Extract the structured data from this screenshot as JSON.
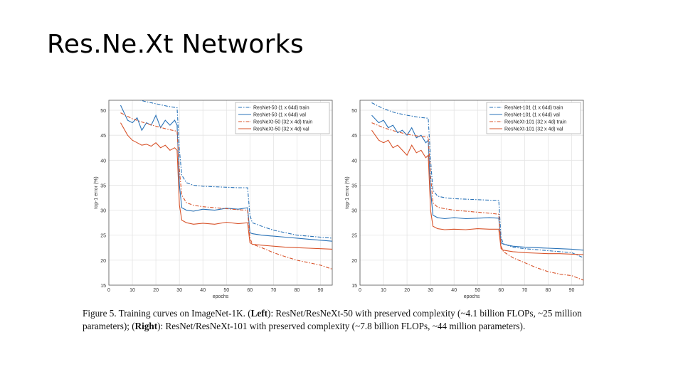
{
  "slide": {
    "title": "Res.Ne.Xt Networks"
  },
  "caption": {
    "lead": "Figure 5. Training curves on ImageNet-1K. (",
    "left_bold": "Left",
    "mid": "): ResNet/ResNeXt-50 with preserved complexity (~4.1 billion FLOPs, ~25 million parameters); (",
    "right_bold": "Right",
    "tail": "): ResNet/ResNeXt-101 with preserved complexity (~7.8 billion FLOPs, ~44 million parameters)."
  },
  "colors": {
    "blue": "#2a73b8",
    "orange": "#d8532a",
    "grid": "#e4e4e4",
    "axis": "#555555"
  },
  "chart_data": [
    {
      "type": "line",
      "xlabel": "epochs",
      "ylabel": "top-1 error (%)",
      "xlim": [
        0,
        95
      ],
      "ylim": [
        15,
        52
      ],
      "xticks": [
        0,
        10,
        20,
        30,
        40,
        50,
        60,
        70,
        80,
        90
      ],
      "yticks": [
        15,
        20,
        25,
        30,
        35,
        40,
        45,
        50
      ],
      "grid": true,
      "legend_position": "top-right",
      "series": [
        {
          "name": "ResNet-50 (1 x 64d) train",
          "style": "dashdot",
          "color": "blue",
          "x": [
            5,
            10,
            15,
            20,
            25,
            29,
            30,
            31,
            33,
            36,
            40,
            45,
            50,
            55,
            59,
            60,
            61,
            65,
            70,
            75,
            80,
            85,
            90,
            95
          ],
          "y": [
            53,
            52.5,
            51.8,
            51.3,
            50.8,
            50.5,
            42,
            37,
            35.5,
            35,
            34.8,
            34.7,
            34.6,
            34.5,
            34.5,
            29,
            27.5,
            26.8,
            26,
            25.5,
            25,
            24.8,
            24.6,
            24.4
          ]
        },
        {
          "name": "ResNet-50 (1 x 64d) val",
          "style": "solid",
          "color": "blue",
          "x": [
            5,
            8,
            10,
            12,
            14,
            16,
            18,
            20,
            22,
            24,
            26,
            28,
            29,
            30,
            31,
            33,
            36,
            40,
            45,
            50,
            55,
            59,
            60,
            61,
            65,
            70,
            75,
            80,
            85,
            90,
            95
          ],
          "y": [
            51,
            48,
            47.5,
            48.5,
            46,
            47.5,
            47,
            49,
            46.5,
            48,
            47,
            48,
            47,
            35,
            30.5,
            30,
            29.8,
            30.2,
            30,
            30.4,
            30.2,
            30.5,
            25.5,
            25.3,
            25,
            24.8,
            24.6,
            24.4,
            24.2,
            24,
            23.8
          ]
        },
        {
          "name": "ResNeXt-50 (32 x 4d) train",
          "style": "dashdot",
          "color": "orange",
          "x": [
            5,
            10,
            15,
            20,
            25,
            29,
            30,
            31,
            33,
            36,
            40,
            45,
            50,
            55,
            59,
            60,
            61,
            65,
            70,
            75,
            80,
            85,
            90,
            95
          ],
          "y": [
            49.5,
            48.3,
            47.5,
            46.8,
            46.2,
            45.8,
            38,
            33,
            31.5,
            31,
            30.7,
            30.5,
            30.3,
            30.1,
            30,
            24.5,
            23.2,
            22.5,
            21.5,
            20.7,
            20,
            19.5,
            19,
            18.2
          ]
        },
        {
          "name": "ResNeXt-50 (32 x 4d) val",
          "style": "solid",
          "color": "orange",
          "x": [
            5,
            8,
            10,
            12,
            14,
            16,
            18,
            20,
            22,
            24,
            26,
            28,
            29,
            30,
            31,
            33,
            36,
            40,
            45,
            50,
            55,
            59,
            60,
            61,
            65,
            70,
            75,
            80,
            85,
            90,
            95
          ],
          "y": [
            47.5,
            45,
            44,
            43.5,
            43,
            43.2,
            42.8,
            43.5,
            42.5,
            43,
            42,
            42.5,
            42,
            31,
            28,
            27.5,
            27.2,
            27.4,
            27.2,
            27.6,
            27.3,
            27.5,
            23.5,
            23.2,
            23,
            22.8,
            22.6,
            22.5,
            22.4,
            22.3,
            22.2
          ]
        }
      ]
    },
    {
      "type": "line",
      "xlabel": "epochs",
      "ylabel": "top-1 error (%)",
      "xlim": [
        0,
        95
      ],
      "ylim": [
        15,
        52
      ],
      "xticks": [
        0,
        10,
        20,
        30,
        40,
        50,
        60,
        70,
        80,
        90
      ],
      "yticks": [
        15,
        20,
        25,
        30,
        35,
        40,
        45,
        50
      ],
      "grid": true,
      "legend_position": "top-right",
      "series": [
        {
          "name": "ResNet-101 (1 x 64d) train",
          "style": "dashdot",
          "color": "blue",
          "x": [
            5,
            10,
            15,
            20,
            25,
            29,
            30,
            31,
            33,
            36,
            40,
            45,
            50,
            55,
            59,
            60,
            61,
            65,
            70,
            75,
            80,
            85,
            90,
            95
          ],
          "y": [
            51.5,
            50.3,
            49.5,
            49,
            48.6,
            48.4,
            40,
            34,
            32.8,
            32.5,
            32.3,
            32.2,
            32.1,
            32,
            32,
            24.5,
            23.3,
            22.6,
            22.3,
            22.1,
            21.9,
            21.7,
            21.5,
            20.5
          ]
        },
        {
          "name": "ResNet-101 (1 x 64d) val",
          "style": "solid",
          "color": "blue",
          "x": [
            5,
            8,
            10,
            12,
            14,
            16,
            18,
            20,
            22,
            24,
            26,
            28,
            29,
            30,
            31,
            33,
            36,
            40,
            45,
            50,
            55,
            59,
            60,
            61,
            65,
            70,
            75,
            80,
            85,
            90,
            95
          ],
          "y": [
            49,
            47.5,
            48,
            46.5,
            47,
            45.5,
            46,
            45,
            46.5,
            44.5,
            45,
            43.5,
            44,
            34,
            29,
            28.5,
            28.3,
            28.5,
            28.3,
            28.4,
            28.5,
            28.4,
            23.5,
            23.2,
            22.8,
            22.6,
            22.5,
            22.4,
            22.3,
            22.2,
            22
          ]
        },
        {
          "name": "ResNeXt-101 (32 x 4d) train",
          "style": "dashdot",
          "color": "orange",
          "x": [
            5,
            10,
            15,
            20,
            25,
            29,
            30,
            31,
            33,
            36,
            40,
            45,
            50,
            55,
            59,
            60,
            61,
            65,
            70,
            75,
            80,
            85,
            90,
            95
          ],
          "y": [
            47.5,
            46.5,
            45.8,
            45.2,
            44.8,
            44.6,
            37,
            31.5,
            30.6,
            30.3,
            30,
            29.8,
            29.6,
            29.4,
            29.2,
            22.8,
            21.7,
            20.5,
            19.5,
            18.5,
            17.7,
            17.2,
            16.9,
            16
          ]
        },
        {
          "name": "ResNeXt-101 (32 x 4d) val",
          "style": "solid",
          "color": "orange",
          "x": [
            5,
            8,
            10,
            12,
            14,
            16,
            18,
            20,
            22,
            24,
            26,
            28,
            29,
            30,
            31,
            33,
            36,
            40,
            45,
            50,
            55,
            59,
            60,
            61,
            65,
            70,
            75,
            80,
            85,
            90,
            95
          ],
          "y": [
            46,
            44,
            43.5,
            44,
            42.5,
            43,
            42,
            41,
            43,
            41.5,
            42,
            40.5,
            41,
            30,
            26.8,
            26.3,
            26.1,
            26.2,
            26.1,
            26.3,
            26.2,
            26.2,
            22.3,
            22,
            21.7,
            21.5,
            21.4,
            21.3,
            21.3,
            21.2,
            21.1
          ]
        }
      ]
    }
  ]
}
